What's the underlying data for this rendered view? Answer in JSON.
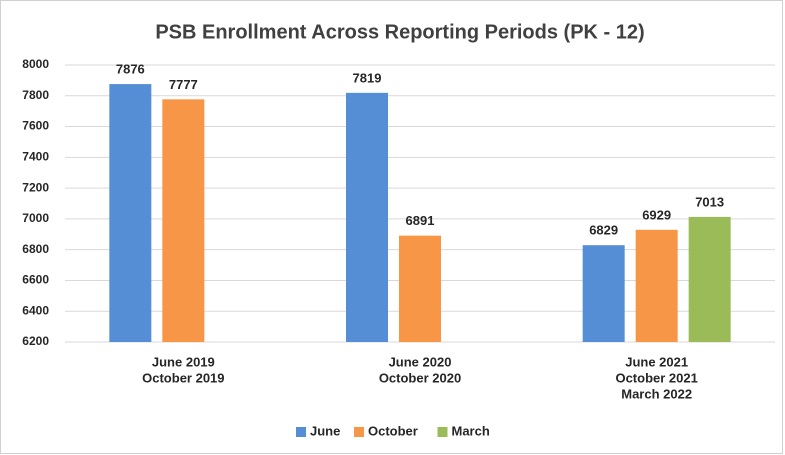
{
  "chart_data": {
    "type": "bar",
    "title": "PSB Enrollment Across Reporting Periods (PK - 12)",
    "categories": [
      [
        "June 2019",
        "October 2019"
      ],
      [
        "June 2020",
        "October 2020"
      ],
      [
        "June 2021",
        "October 2021",
        "March 2022"
      ]
    ],
    "series": [
      {
        "name": "June",
        "color": "#558ed5",
        "values": [
          7876,
          7819,
          6829
        ]
      },
      {
        "name": "October",
        "color": "#f79646",
        "values": [
          7777,
          6891,
          6929
        ]
      },
      {
        "name": "March",
        "color": "#9bbb59",
        "values": [
          null,
          null,
          7013
        ]
      }
    ],
    "ylim": [
      6200,
      8000
    ],
    "yticks": [
      6200,
      6400,
      6600,
      6800,
      7000,
      7200,
      7400,
      7600,
      7800,
      8000
    ],
    "grid": true,
    "legend": "bottom"
  }
}
